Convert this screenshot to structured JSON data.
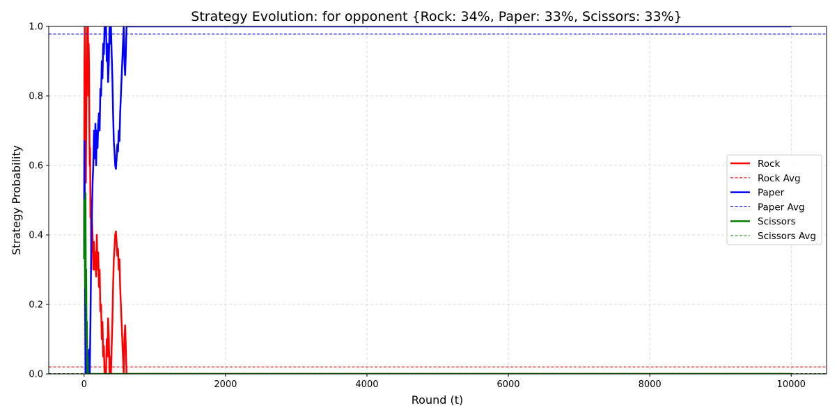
{
  "chart_data": {
    "type": "line",
    "title": "Strategy Evolution: for opponent {Rock: 34%, Paper: 33%, Scissors: 33%}",
    "xlabel": "Round (t)",
    "ylabel": "Strategy Probability",
    "xlim": [
      -500,
      10500
    ],
    "ylim": [
      0,
      1
    ],
    "xticks": [
      0,
      2000,
      4000,
      6000,
      8000,
      10000
    ],
    "yticks": [
      0.0,
      0.2,
      0.4,
      0.6,
      0.8,
      1.0
    ],
    "xtick_labels": [
      "0",
      "2000",
      "4000",
      "6000",
      "8000",
      "10000"
    ],
    "ytick_labels": [
      "0.0",
      "0.2",
      "0.4",
      "0.6",
      "0.8",
      "1.0"
    ],
    "grid": true,
    "legend_position": "center-right",
    "series": [
      {
        "name": "Rock",
        "color": "#ff0000",
        "style": "solid",
        "points": [
          [
            0,
            0.33
          ],
          [
            5,
            0.9
          ],
          [
            10,
            1.0
          ],
          [
            15,
            0.6
          ],
          [
            20,
            0.75
          ],
          [
            25,
            0.55
          ],
          [
            30,
            0.7
          ],
          [
            35,
            0.85
          ],
          [
            40,
            0.95
          ],
          [
            45,
            1.0
          ],
          [
            50,
            0.9
          ],
          [
            55,
            1.0
          ],
          [
            60,
            0.8
          ],
          [
            65,
            0.95
          ],
          [
            70,
            0.88
          ],
          [
            75,
            0.7
          ],
          [
            80,
            0.6
          ],
          [
            85,
            0.65
          ],
          [
            90,
            0.45
          ],
          [
            95,
            0.5
          ],
          [
            100,
            0.35
          ],
          [
            110,
            0.45
          ],
          [
            120,
            0.4
          ],
          [
            130,
            0.3
          ],
          [
            140,
            0.38
          ],
          [
            150,
            0.3
          ],
          [
            160,
            0.35
          ],
          [
            170,
            0.28
          ],
          [
            180,
            0.4
          ],
          [
            190,
            0.3
          ],
          [
            200,
            0.35
          ],
          [
            210,
            0.25
          ],
          [
            220,
            0.3
          ],
          [
            230,
            0.18
          ],
          [
            240,
            0.2
          ],
          [
            250,
            0.1
          ],
          [
            260,
            0.15
          ],
          [
            270,
            0.05
          ],
          [
            280,
            0.08
          ],
          [
            290,
            0.0
          ],
          [
            300,
            0.02
          ],
          [
            310,
            0.0
          ],
          [
            320,
            0.1
          ],
          [
            330,
            0.05
          ],
          [
            340,
            0.16
          ],
          [
            350,
            0.1
          ],
          [
            360,
            0.0
          ],
          [
            370,
            0.05
          ],
          [
            380,
            0.0
          ],
          [
            390,
            0.08
          ],
          [
            400,
            0.15
          ],
          [
            410,
            0.25
          ],
          [
            420,
            0.33
          ],
          [
            430,
            0.36
          ],
          [
            440,
            0.4
          ],
          [
            450,
            0.41
          ],
          [
            460,
            0.38
          ],
          [
            470,
            0.34
          ],
          [
            480,
            0.36
          ],
          [
            490,
            0.3
          ],
          [
            500,
            0.33
          ],
          [
            510,
            0.25
          ],
          [
            520,
            0.2
          ],
          [
            530,
            0.15
          ],
          [
            540,
            0.1
          ],
          [
            550,
            0.05
          ],
          [
            560,
            0.0
          ],
          [
            570,
            0.1
          ],
          [
            580,
            0.14
          ],
          [
            590,
            0.08
          ],
          [
            600,
            0.0
          ],
          [
            10000,
            0.0
          ]
        ]
      },
      {
        "name": "Rock Avg",
        "color": "#ff0000",
        "style": "dashed",
        "y": 0.02
      },
      {
        "name": "Paper",
        "color": "#0000ff",
        "style": "solid",
        "points": [
          [
            0,
            0.33
          ],
          [
            5,
            0.67
          ],
          [
            10,
            0.5
          ],
          [
            15,
            0.2
          ],
          [
            20,
            0.0
          ],
          [
            40,
            0.0
          ],
          [
            50,
            0.05
          ],
          [
            60,
            0.0
          ],
          [
            70,
            0.07
          ],
          [
            80,
            0.0
          ],
          [
            90,
            0.15
          ],
          [
            100,
            0.35
          ],
          [
            110,
            0.45
          ],
          [
            120,
            0.55
          ],
          [
            130,
            0.6
          ],
          [
            140,
            0.7
          ],
          [
            150,
            0.62
          ],
          [
            160,
            0.72
          ],
          [
            170,
            0.6
          ],
          [
            180,
            0.7
          ],
          [
            190,
            0.65
          ],
          [
            200,
            0.72
          ],
          [
            210,
            0.75
          ],
          [
            220,
            0.7
          ],
          [
            230,
            0.82
          ],
          [
            240,
            0.8
          ],
          [
            250,
            0.9
          ],
          [
            260,
            0.85
          ],
          [
            270,
            0.95
          ],
          [
            280,
            0.92
          ],
          [
            290,
            1.0
          ],
          [
            300,
            0.98
          ],
          [
            310,
            1.0
          ],
          [
            320,
            0.9
          ],
          [
            330,
            0.95
          ],
          [
            340,
            0.84
          ],
          [
            350,
            0.9
          ],
          [
            360,
            1.0
          ],
          [
            370,
            0.95
          ],
          [
            380,
            1.0
          ],
          [
            390,
            0.92
          ],
          [
            400,
            0.85
          ],
          [
            410,
            0.75
          ],
          [
            420,
            0.67
          ],
          [
            430,
            0.64
          ],
          [
            440,
            0.6
          ],
          [
            450,
            0.59
          ],
          [
            460,
            0.62
          ],
          [
            470,
            0.66
          ],
          [
            480,
            0.64
          ],
          [
            490,
            0.7
          ],
          [
            500,
            0.67
          ],
          [
            510,
            0.75
          ],
          [
            520,
            0.8
          ],
          [
            530,
            0.85
          ],
          [
            540,
            0.9
          ],
          [
            550,
            0.95
          ],
          [
            560,
            1.0
          ],
          [
            570,
            0.9
          ],
          [
            580,
            0.86
          ],
          [
            590,
            0.92
          ],
          [
            600,
            1.0
          ],
          [
            10000,
            1.0
          ]
        ]
      },
      {
        "name": "Paper Avg",
        "color": "#0000ff",
        "style": "dashed",
        "y": 0.978
      },
      {
        "name": "Scissors",
        "color": "#008000",
        "style": "solid",
        "points": [
          [
            0,
            0.33
          ],
          [
            5,
            0.5
          ],
          [
            10,
            0.45
          ],
          [
            15,
            0.25
          ],
          [
            20,
            0.52
          ],
          [
            25,
            0.2
          ],
          [
            30,
            0.3
          ],
          [
            35,
            0.1
          ],
          [
            40,
            0.15
          ],
          [
            45,
            0.0
          ],
          [
            50,
            0.05
          ],
          [
            55,
            0.0
          ],
          [
            60,
            0.0
          ],
          [
            10000,
            0.0
          ]
        ]
      },
      {
        "name": "Scissors Avg",
        "color": "#008000",
        "style": "dashed",
        "y": 0.001
      }
    ]
  }
}
